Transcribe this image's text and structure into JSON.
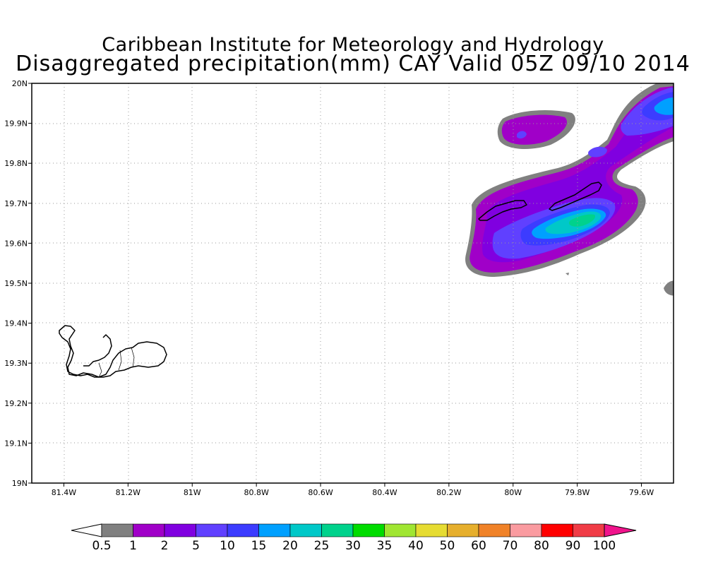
{
  "title": {
    "line1": "Caribbean Institute for Meteorology and Hydrology",
    "line2": "Disaggregated precipitation(mm) CAY Valid 05Z 09/10 2014"
  },
  "map": {
    "lon_range": [
      -81.5,
      -79.5
    ],
    "lat_range": [
      19.0,
      20.0
    ],
    "grid": "dotted",
    "x_ticks": [
      {
        "lon": -81.4,
        "label": "81.4W"
      },
      {
        "lon": -81.2,
        "label": "81.2W"
      },
      {
        "lon": -81.0,
        "label": "81W"
      },
      {
        "lon": -80.8,
        "label": "80.8W"
      },
      {
        "lon": -80.6,
        "label": "80.6W"
      },
      {
        "lon": -80.4,
        "label": "80.4W"
      },
      {
        "lon": -80.2,
        "label": "80.2W"
      },
      {
        "lon": -80.0,
        "label": "80W"
      },
      {
        "lon": -79.8,
        "label": "79.8W"
      },
      {
        "lon": -79.6,
        "label": "79.6W"
      }
    ],
    "y_ticks": [
      {
        "lat": 20.0,
        "label": "20N"
      },
      {
        "lat": 19.9,
        "label": "19.9N"
      },
      {
        "lat": 19.8,
        "label": "19.8N"
      },
      {
        "lat": 19.7,
        "label": "19.7N"
      },
      {
        "lat": 19.6,
        "label": "19.6N"
      },
      {
        "lat": 19.5,
        "label": "19.5N"
      },
      {
        "lat": 19.4,
        "label": "19.4N"
      },
      {
        "lat": 19.3,
        "label": "19.3N"
      },
      {
        "lat": 19.2,
        "label": "19.2N"
      },
      {
        "lat": 19.1,
        "label": "19.1N"
      },
      {
        "lat": 19.0,
        "label": "19N"
      }
    ]
  },
  "colorbar": {
    "labels": [
      "0.5",
      "1",
      "2",
      "5",
      "10",
      "15",
      "20",
      "25",
      "30",
      "35",
      "40",
      "50",
      "60",
      "70",
      "80",
      "90",
      "100"
    ],
    "colors": [
      "#808080",
      "#a000c8",
      "#8000e0",
      "#6040ff",
      "#3c3cff",
      "#00a0ff",
      "#00c8c8",
      "#00d28c",
      "#00dc00",
      "#a0e632",
      "#e6dc32",
      "#e6af2d",
      "#f08228",
      "#fa9ba0",
      "#ff0000",
      "#f03c46"
    ],
    "low_color": "#ffffff",
    "high_color": "#f0148c"
  },
  "colors": {
    "c05": "#808080",
    "c1": "#a000c8",
    "c2": "#8000e0",
    "c5": "#6040ff",
    "c10": "#3c3cff",
    "c15": "#00a0ff",
    "c20": "#00c8c8",
    "c25": "#00d28c"
  }
}
